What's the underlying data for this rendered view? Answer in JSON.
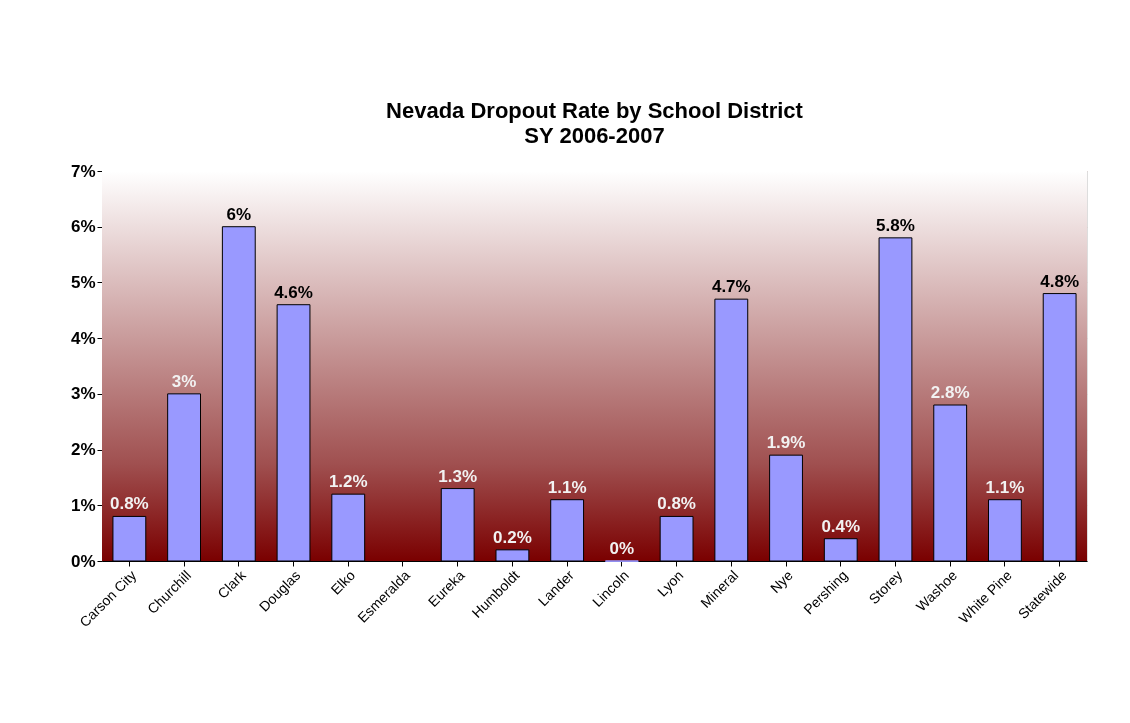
{
  "chart_data": {
    "type": "bar",
    "title": "Nevada Dropout Rate by School District",
    "subtitle": "SY 2006-2007",
    "categories": [
      "Carson City",
      "Churchill",
      "Clark",
      "Douglas",
      "Elko",
      "Esmeralda",
      "Eureka",
      "Humboldt",
      "Lander",
      "Lincoln",
      "Lyon",
      "Mineral",
      "Nye",
      "Pershing",
      "Storey",
      "Washoe",
      "White Pine",
      "Statewide"
    ],
    "values": [
      0.8,
      3,
      6,
      4.6,
      1.2,
      null,
      1.3,
      0.2,
      1.1,
      0,
      0.8,
      4.7,
      1.9,
      0.4,
      5.8,
      2.8,
      1.1,
      4.8
    ],
    "value_labels": [
      "0.8%",
      "3%",
      "6%",
      "4.6%",
      "1.2%",
      null,
      "1.3%",
      "0.2%",
      "1.1%",
      "0%",
      "0.8%",
      "4.7%",
      "1.9%",
      "0.4%",
      "5.8%",
      "2.8%",
      "1.1%",
      "4.8%"
    ],
    "color": "#9999ff",
    "ylim": [
      0,
      7
    ],
    "yticks": [
      {
        "value": 0,
        "label": "0%"
      },
      {
        "value": 1,
        "label": "1%"
      },
      {
        "value": 2,
        "label": "2%"
      },
      {
        "value": 3,
        "label": "3%"
      },
      {
        "value": 4,
        "label": "4%"
      },
      {
        "value": 5,
        "label": "5%"
      },
      {
        "value": 6,
        "label": "6%"
      },
      {
        "value": 7,
        "label": "7%"
      }
    ],
    "grid": "y"
  }
}
